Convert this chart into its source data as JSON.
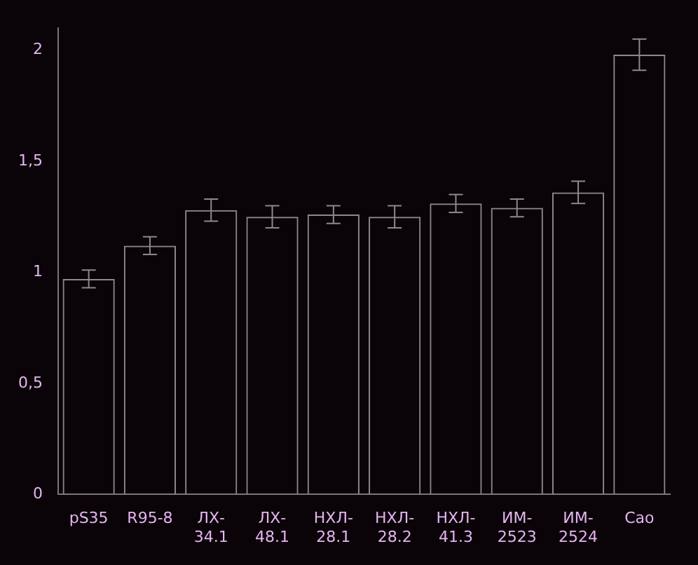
{
  "chart_data": {
    "type": "bar",
    "categories": [
      "pS35",
      "R95-8",
      "ЛХ-34.1",
      "ЛХ-48.1",
      "НХЛ-28.1",
      "НХЛ-28.2",
      "НХЛ-41.3",
      "ИМ-2523",
      "ИМ-2524",
      "Cao"
    ],
    "values": [
      0.97,
      1.12,
      1.28,
      1.25,
      1.26,
      1.25,
      1.31,
      1.29,
      1.36,
      1.98
    ],
    "errors": [
      0.04,
      0.04,
      0.05,
      0.05,
      0.04,
      0.05,
      0.04,
      0.04,
      0.05,
      0.07
    ],
    "color": "#8a8a8a",
    "ylim": [
      0,
      2.1
    ],
    "yticks": [
      0,
      {
        "value": 0.5,
        "label": "0,5"
      },
      1,
      {
        "value": 1.5,
        "label": "1,5"
      },
      2
    ],
    "grid": false,
    "legend": false
  }
}
